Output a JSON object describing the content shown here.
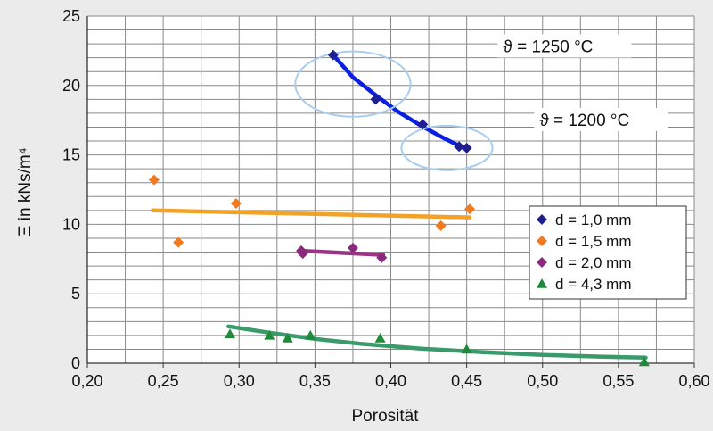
{
  "chart_data": {
    "type": "scatter",
    "title": "",
    "xlabel": "Porosität",
    "ylabel": "Ξ in kNs/m⁴",
    "xlim": [
      0.2,
      0.6
    ],
    "ylim": [
      0,
      25
    ],
    "x_ticks": [
      "0,20",
      "0,25",
      "0,30",
      "0,35",
      "0,40",
      "0,45",
      "0,50",
      "0,55",
      "0,60"
    ],
    "y_ticks": [
      "0",
      "5",
      "10",
      "15",
      "20",
      "25"
    ],
    "grid": true,
    "legend_position": "right",
    "series": [
      {
        "name": "d = 1,0 mm",
        "marker": "diamond",
        "color": "#1f1f8f",
        "points": [
          [
            0.362,
            22.2
          ],
          [
            0.39,
            19.0
          ],
          [
            0.421,
            17.2
          ],
          [
            0.445,
            15.6
          ],
          [
            0.45,
            15.5
          ]
        ],
        "trend_color": "#0a1fe0",
        "trend": [
          [
            0.362,
            22.2
          ],
          [
            0.375,
            20.6
          ],
          [
            0.39,
            19.3
          ],
          [
            0.405,
            18.1
          ],
          [
            0.42,
            17.1
          ],
          [
            0.435,
            16.2
          ],
          [
            0.448,
            15.5
          ]
        ]
      },
      {
        "name": "d = 1,5 mm",
        "marker": "diamond",
        "color": "#f07a20",
        "points": [
          [
            0.244,
            13.2
          ],
          [
            0.26,
            8.7
          ],
          [
            0.298,
            11.5
          ],
          [
            0.433,
            9.9
          ],
          [
            0.452,
            11.1
          ]
        ],
        "trend_color": "#f2a227",
        "trend": [
          [
            0.243,
            11.0
          ],
          [
            0.452,
            10.5
          ]
        ]
      },
      {
        "name": "d = 2,0 mm",
        "marker": "diamond",
        "color": "#8a2a7c",
        "points": [
          [
            0.341,
            8.1
          ],
          [
            0.342,
            7.9
          ],
          [
            0.375,
            8.3
          ],
          [
            0.394,
            7.6
          ]
        ],
        "trend_color": "#9a3484",
        "trend": [
          [
            0.34,
            8.1
          ],
          [
            0.395,
            7.8
          ]
        ]
      },
      {
        "name": "d = 4,3 mm",
        "marker": "triangle",
        "color": "#1e8a3a",
        "points": [
          [
            0.294,
            2.1
          ],
          [
            0.32,
            2.0
          ],
          [
            0.332,
            1.8
          ],
          [
            0.347,
            2.0
          ],
          [
            0.393,
            1.8
          ],
          [
            0.45,
            1.0
          ],
          [
            0.567,
            0.1
          ]
        ],
        "trend_color": "#3a9a6a",
        "trend": [
          [
            0.293,
            2.65
          ],
          [
            0.32,
            2.2
          ],
          [
            0.35,
            1.75
          ],
          [
            0.38,
            1.4
          ],
          [
            0.42,
            1.05
          ],
          [
            0.46,
            0.8
          ],
          [
            0.5,
            0.6
          ],
          [
            0.54,
            0.47
          ],
          [
            0.568,
            0.4
          ]
        ]
      }
    ],
    "annotations": [
      {
        "text": "ϑ = 1250 °C",
        "x": 0.474,
        "y": 22.4,
        "ellipse": {
          "cx": 0.375,
          "cy": 20.1,
          "rx": 0.038,
          "ry": 2.35
        }
      },
      {
        "text": "ϑ = 1200 °C",
        "x": 0.498,
        "y": 17.1,
        "ellipse": {
          "cx": 0.437,
          "cy": 15.5,
          "rx": 0.03,
          "ry": 1.6
        }
      }
    ]
  }
}
